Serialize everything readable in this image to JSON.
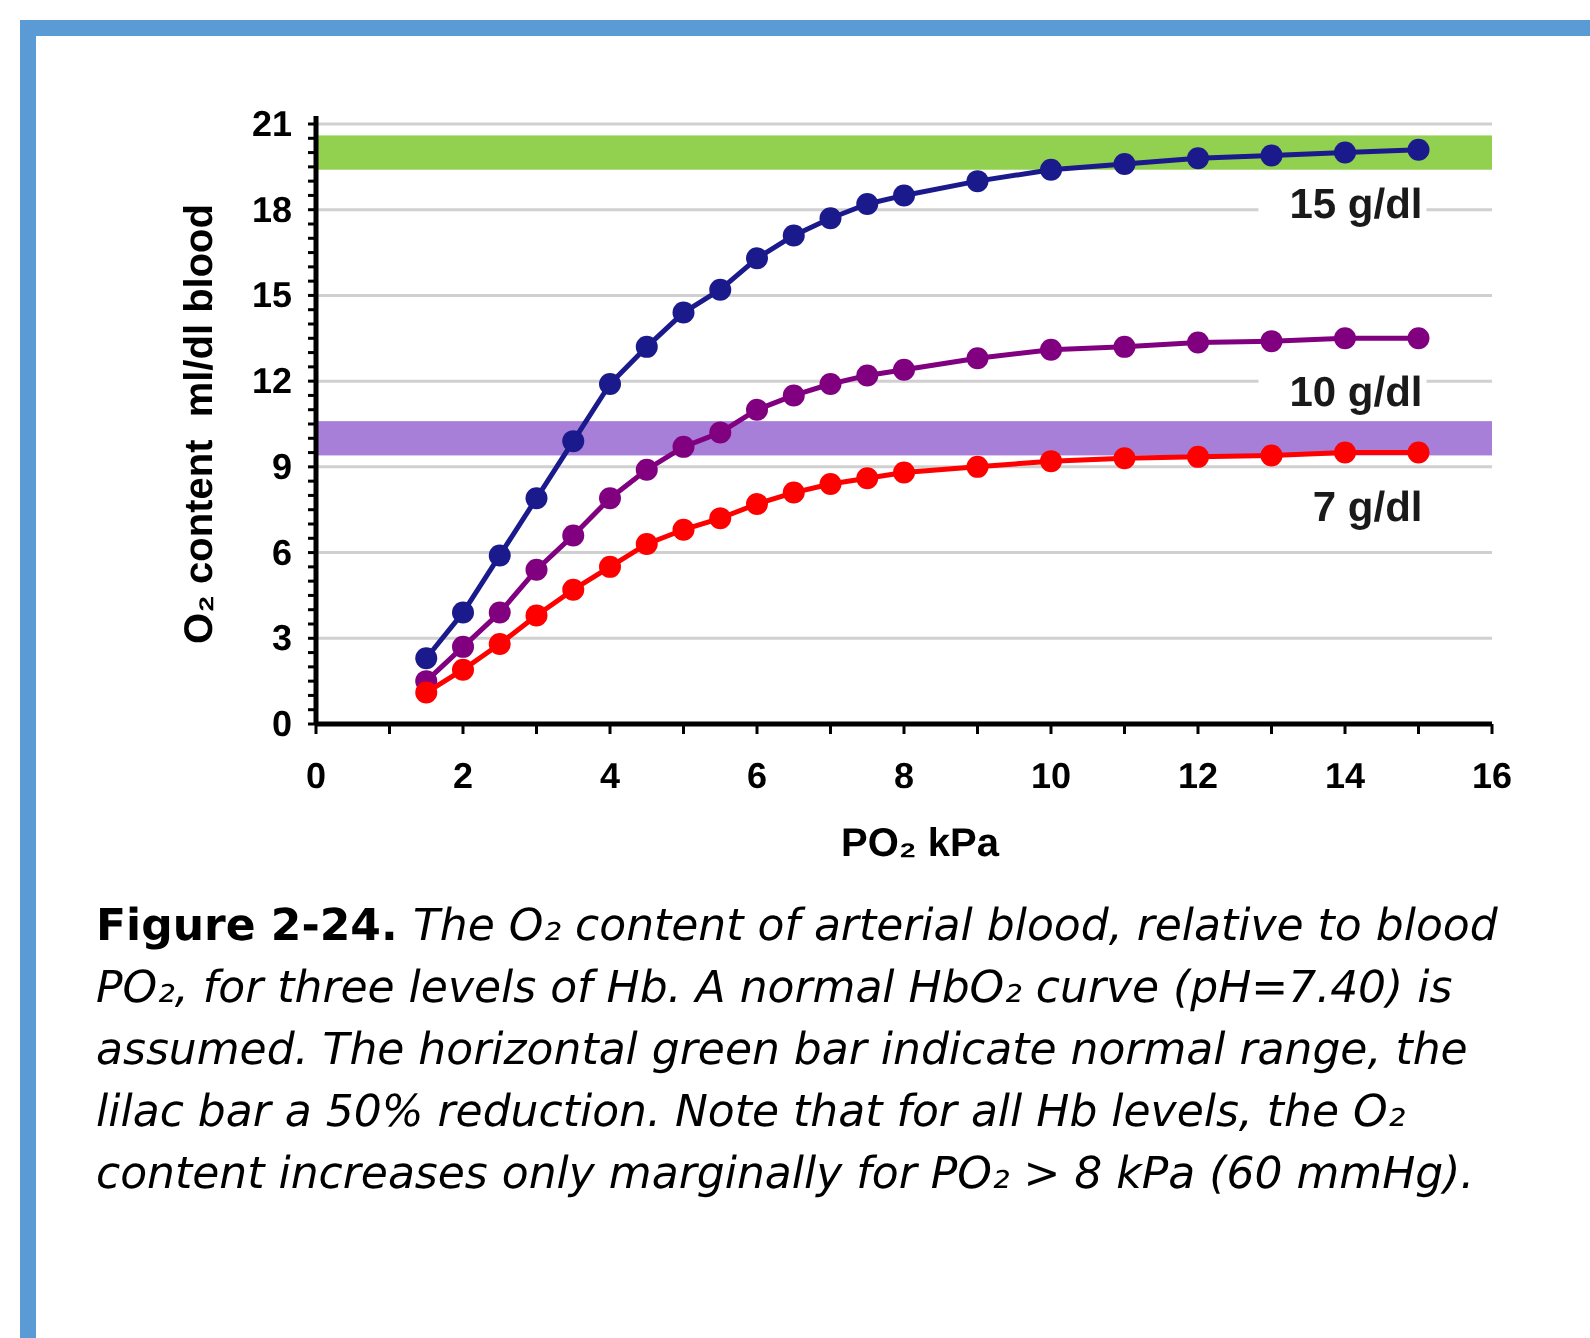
{
  "chart_data": {
    "type": "line",
    "xlabel": "PO₂ kPa",
    "ylabel": "O₂ content  ml/dl blood",
    "x": [
      1.5,
      2,
      2.5,
      3,
      3.5,
      4,
      4.5,
      5,
      5.5,
      6,
      6.5,
      7,
      7.5,
      8,
      9,
      10,
      11,
      12,
      13,
      14,
      15
    ],
    "series": [
      {
        "name": "15 g/dl",
        "color": "#1a1a8c",
        "values": [
          2.3,
          3.9,
          5.9,
          7.9,
          9.9,
          11.9,
          13.2,
          14.4,
          15.2,
          16.3,
          17.1,
          17.7,
          18.2,
          18.5,
          19.0,
          19.4,
          19.6,
          19.8,
          19.9,
          20.0,
          20.1
        ]
      },
      {
        "name": "10 g/dl",
        "color": "#800080",
        "values": [
          1.5,
          2.7,
          3.9,
          5.4,
          6.6,
          7.9,
          8.9,
          9.7,
          10.2,
          11.0,
          11.5,
          11.9,
          12.2,
          12.4,
          12.8,
          13.1,
          13.2,
          13.35,
          13.4,
          13.5,
          13.5
        ]
      },
      {
        "name": "7 g/dl",
        "color": "#ff0000",
        "values": [
          1.1,
          1.9,
          2.8,
          3.8,
          4.7,
          5.5,
          6.3,
          6.8,
          7.2,
          7.7,
          8.1,
          8.4,
          8.6,
          8.8,
          9.0,
          9.2,
          9.3,
          9.35,
          9.4,
          9.5,
          9.5
        ]
      }
    ],
    "xlim": [
      0,
      16
    ],
    "xticks": [
      0,
      2,
      4,
      6,
      8,
      10,
      12,
      14,
      16
    ],
    "ylim": [
      0,
      21
    ],
    "yticks": [
      0,
      3,
      6,
      9,
      12,
      15,
      18,
      21
    ],
    "grid": "y",
    "marker": "circle",
    "line_style": "solid",
    "bands": [
      {
        "axis": "y",
        "from": 19.4,
        "to": 20.6,
        "color": "#92d050"
      },
      {
        "axis": "y",
        "from": 9.4,
        "to": 10.6,
        "color": "#a77fd8"
      }
    ],
    "annotations": [
      "Figure 2-24.",
      "The O₂ content of arterial blood, relative to blood PO₂, for three levels of Hb. A normal HbO₂ curve (pH=7.40) is assumed. The horizontal green bar indicate normal range, the lilac bar a 50% reduction. Note that for all Hb levels, the O₂ content increases only marginally for PO₂ > 8 kPa (60 mmHg)."
    ]
  }
}
